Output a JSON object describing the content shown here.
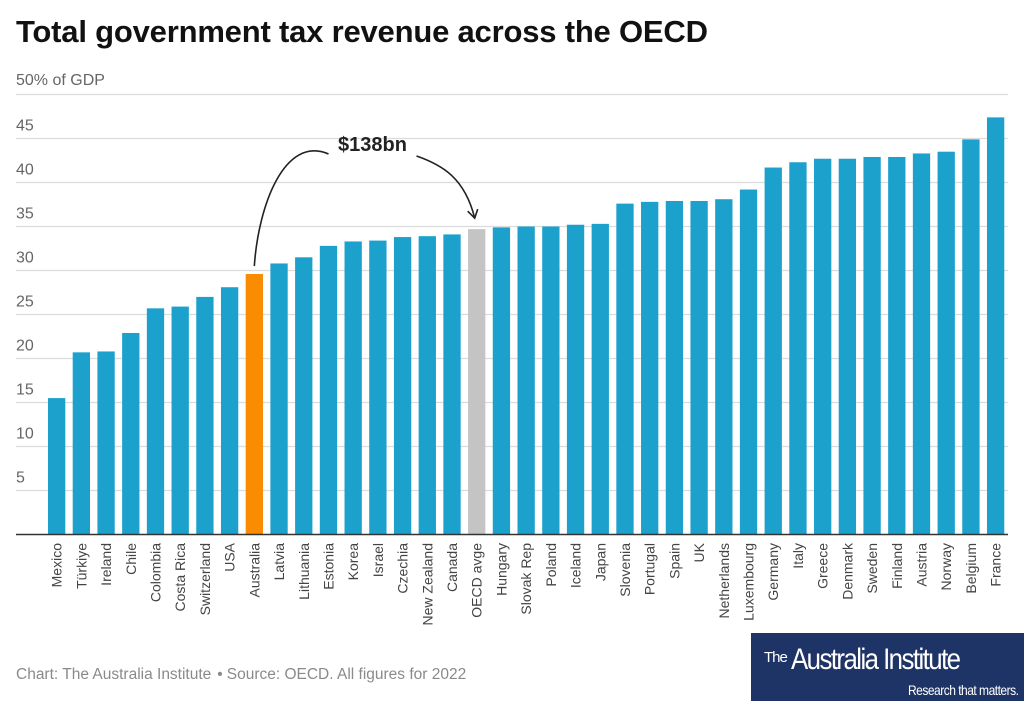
{
  "chart_data": {
    "type": "bar",
    "title": "Total government tax revenue across the OECD",
    "ylabel_top": "50% of GDP",
    "xlabel": "",
    "ylim": [
      0,
      50
    ],
    "yticks": [
      5,
      10,
      15,
      20,
      25,
      30,
      35,
      40,
      45
    ],
    "grid": true,
    "categories": [
      "Mexico",
      "Türkiye",
      "Ireland",
      "Chile",
      "Colombia",
      "Costa Rica",
      "Switzerland",
      "USA",
      "Australia",
      "Latvia",
      "Lithuania",
      "Estonia",
      "Korea",
      "Israel",
      "Czechia",
      "New Zealand",
      "Canada",
      "OECD avge",
      "Hungary",
      "Slovak Rep",
      "Poland",
      "Iceland",
      "Japan",
      "Slovenia",
      "Portugal",
      "Spain",
      "UK",
      "Netherlands",
      "Luxembourg",
      "Germany",
      "Italy",
      "Greece",
      "Denmark",
      "Sweden",
      "Finland",
      "Austria",
      "Norway",
      "Belgium",
      "France"
    ],
    "values": [
      15.5,
      20.7,
      20.8,
      22.9,
      25.7,
      25.9,
      27.0,
      28.1,
      29.6,
      30.8,
      31.5,
      32.8,
      33.3,
      33.4,
      33.8,
      33.9,
      34.1,
      34.7,
      34.9,
      35.0,
      35.0,
      35.2,
      35.3,
      37.6,
      37.8,
      37.9,
      37.9,
      38.1,
      39.2,
      41.7,
      42.3,
      42.7,
      42.7,
      42.9,
      42.9,
      43.3,
      43.5,
      44.9,
      47.4
    ],
    "highlights": {
      "Australia": "#f98c00",
      "OECD avge": "#c4c4c4"
    },
    "default_color": "#1ba1cc",
    "annotation": {
      "text": "$138bn",
      "from": "Australia",
      "to": "OECD avge"
    }
  },
  "footer": {
    "credit": "Chart: The Australia Institute",
    "separator": "•",
    "source": "Source: OECD. All figures for 2022"
  },
  "logo": {
    "the": "The",
    "name": "Australia Institute",
    "tagline": "Research that matters."
  }
}
